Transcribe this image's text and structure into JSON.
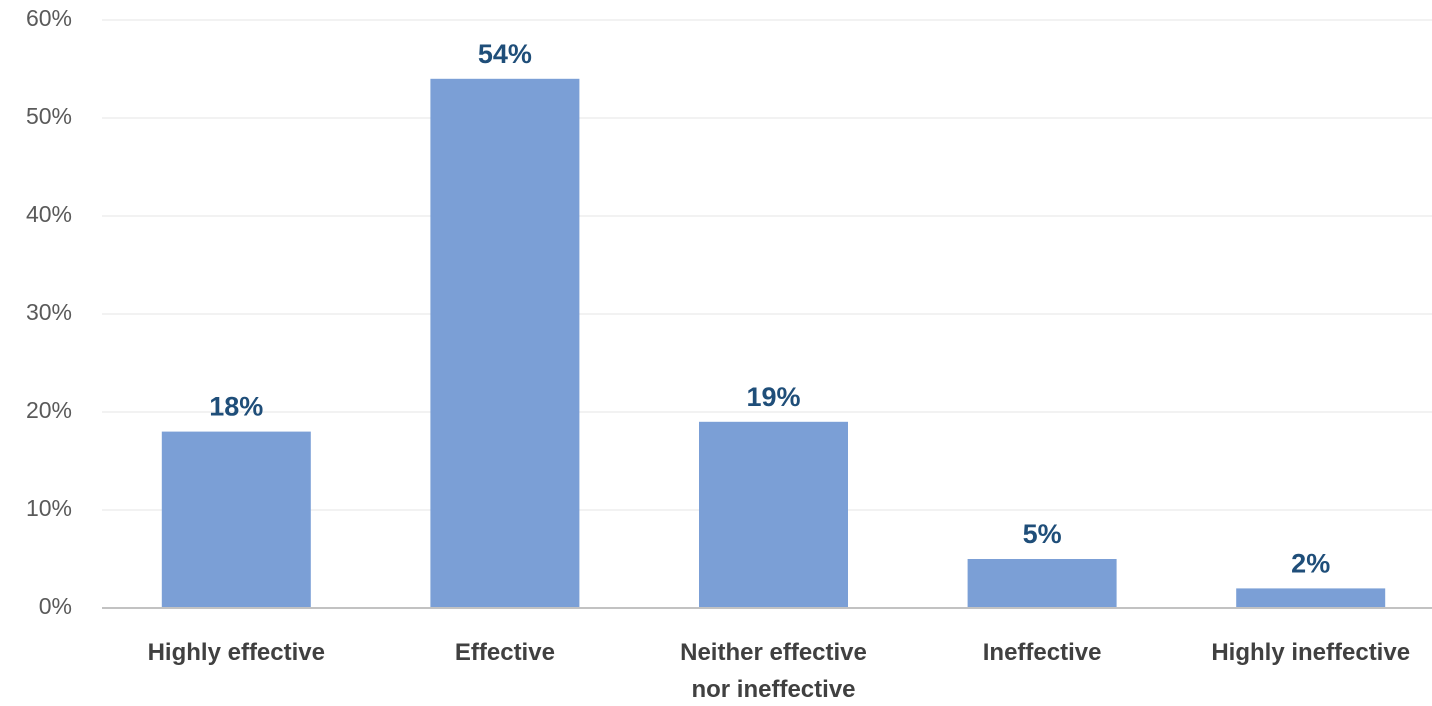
{
  "chart_data": {
    "type": "bar",
    "title": "",
    "xlabel": "",
    "ylabel": "",
    "categories": [
      [
        "Highly effective"
      ],
      [
        "Effective"
      ],
      [
        "Neither effective",
        "nor ineffective"
      ],
      [
        "Ineffective"
      ],
      [
        "Highly ineffective"
      ]
    ],
    "values": [
      18,
      54,
      19,
      5,
      2
    ],
    "data_labels": [
      "18%",
      "54%",
      "19%",
      "5%",
      "2%"
    ],
    "ylim": [
      0,
      60
    ],
    "yticks": [
      0,
      10,
      20,
      30,
      40,
      50,
      60
    ],
    "ytick_labels": [
      "0%",
      "10%",
      "20%",
      "30%",
      "40%",
      "50%",
      "60%"
    ],
    "grid": true,
    "legend": "none",
    "colors": {
      "bar": "#7b9fd6",
      "data_label": "#1f4e79",
      "tick_label": "#404040",
      "grid": "#ebebeb",
      "axis": "#c2c2c2"
    }
  }
}
